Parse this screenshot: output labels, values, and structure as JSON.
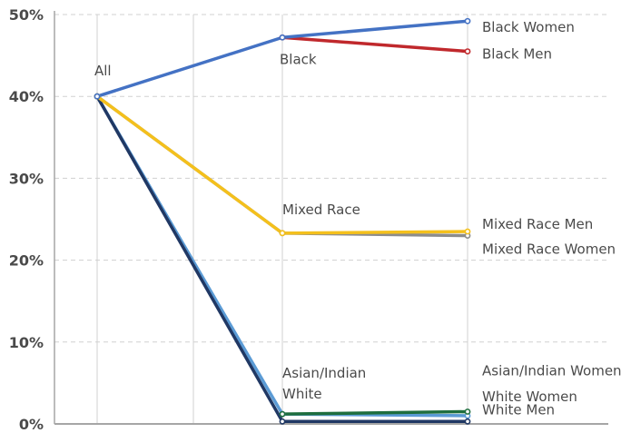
{
  "chart_data": {
    "type": "line",
    "title": "",
    "xlabel": "",
    "ylabel": "",
    "ylim": [
      0,
      50
    ],
    "y_ticks": [
      "0%",
      "10%",
      "20%",
      "30%",
      "40%",
      "50%"
    ],
    "y_tick_values": [
      0,
      10,
      20,
      30,
      40,
      50
    ],
    "grid": true,
    "x_stages": [
      0,
      1,
      2,
      3
    ],
    "series": [
      {
        "values": [
          40,
          1.2,
          1.0
        ],
        "x": [
          0,
          2,
          3
        ],
        "color": "#5b9bd5"
      },
      {
        "values": [
          40,
          0.3,
          0.3
        ],
        "x": [
          0,
          2,
          3
        ],
        "color": "#203864"
      },
      {
        "values": [
          1.2,
          1.5
        ],
        "x": [
          2,
          3
        ],
        "color": "#1e6e3e"
      },
      {
        "values": [
          40,
          23.3,
          23.0
        ],
        "x": [
          0,
          2,
          3
        ],
        "color": "#8c8c8c"
      },
      {
        "values": [
          40,
          23.3,
          23.5
        ],
        "x": [
          0,
          2,
          3
        ],
        "color": "#f4c01c"
      },
      {
        "values": [
          47.2,
          45.5
        ],
        "x": [
          2,
          3
        ],
        "color": "#c0282c"
      },
      {
        "values": [
          40,
          47.2,
          49.2
        ],
        "x": [
          0,
          2,
          3
        ],
        "color": "#4472c4"
      }
    ],
    "annotations": [
      {
        "text": "All",
        "x": 0,
        "y": 40
      },
      {
        "text": "Black",
        "x": 2,
        "y": 47.2
      },
      {
        "text": "Mixed Race",
        "x": 2,
        "y": 23.3
      },
      {
        "text": "Asian/Indian",
        "x": 2,
        "y": 1.2
      },
      {
        "text": "White",
        "x": 2,
        "y": 1.2
      },
      {
        "text": "Black Women",
        "x": 3,
        "y": 49.2
      },
      {
        "text": "Black Men",
        "x": 3,
        "y": 45.5
      },
      {
        "text": "Mixed Race Men",
        "x": 3,
        "y": 23.5
      },
      {
        "text": "Mixed Race Women",
        "x": 3,
        "y": 23.0
      },
      {
        "text": "Asian/Indian Women",
        "x": 3,
        "y": 1.5
      },
      {
        "text": "White Women",
        "x": 3,
        "y": 1.0
      },
      {
        "text": "White Men",
        "x": 3,
        "y": 0.3
      }
    ]
  }
}
